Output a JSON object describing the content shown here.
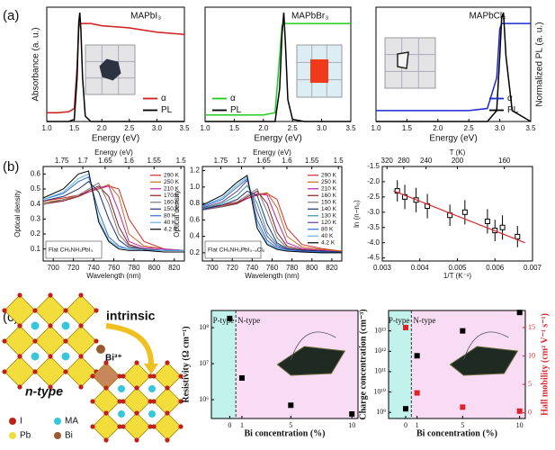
{
  "panel_labels": [
    "(a)",
    "(b)",
    "(c)"
  ],
  "diagram": {
    "intrinsic": "intrinsic",
    "dopant": "Bi³⁺",
    "ntype": "n-type",
    "legend": [
      "I",
      "MA",
      "Pb",
      "Bi"
    ]
  },
  "chart_data": [
    {
      "type": "line",
      "title": "MAPbI₃",
      "xlabel": "Energy (eV)",
      "ylabel": "Absorbance (a. u.)",
      "legend": "lower right",
      "xlim": [
        1,
        3.5
      ],
      "ylim": [
        0,
        1.05
      ],
      "xticks": [
        {
          "value": 1,
          "label": "1.0"
        },
        1.5,
        {
          "value": 2,
          "label": "2.0"
        },
        2.5,
        {
          "value": 3,
          "label": "3.0"
        },
        3.5
      ],
      "x": [
        1.0,
        1.2,
        1.4,
        1.5,
        1.55,
        1.58,
        1.6,
        1.62,
        1.65,
        1.7,
        1.8,
        2.0,
        2.5,
        3.0,
        3.5
      ],
      "series": [
        {
          "name": "α",
          "color": "#d01c1c",
          "values": [
            0.08,
            0.08,
            0.09,
            0.12,
            0.5,
            0.85,
            0.9,
            0.9,
            0.9,
            0.9,
            0.9,
            0.88,
            0.86,
            0.82,
            0.8
          ]
        },
        {
          "name": "PL",
          "color": "#000000",
          "values": [
            0,
            0,
            0,
            0.02,
            0.4,
            0.9,
            1.0,
            0.85,
            0.4,
            0.05,
            0,
            0,
            0,
            0,
            0
          ]
        }
      ]
    },
    {
      "type": "line",
      "title": "MAPbBr₃",
      "xlabel": "Energy (eV)",
      "legend": "lower left",
      "xlim": [
        1,
        3.5
      ],
      "ylim": [
        0,
        1.05
      ],
      "xticks": [
        {
          "value": 1,
          "label": "1.0"
        },
        1.5,
        {
          "value": 2,
          "label": "2.0"
        },
        2.5,
        {
          "value": 3,
          "label": "3.0"
        },
        3.5
      ],
      "x": [
        1.0,
        1.5,
        2.0,
        2.2,
        2.28,
        2.32,
        2.35,
        2.38,
        2.42,
        2.5,
        2.7,
        3.0,
        3.5
      ],
      "series": [
        {
          "name": "α",
          "color": "#22cc22",
          "values": [
            0.06,
            0.06,
            0.06,
            0.08,
            0.6,
            0.88,
            0.9,
            0.9,
            0.9,
            0.9,
            0.9,
            0.9,
            0.9
          ]
        },
        {
          "name": "PL",
          "color": "#000000",
          "values": [
            0,
            0,
            0,
            0,
            0.3,
            0.8,
            1.0,
            0.7,
            0.2,
            0.02,
            0,
            0,
            0
          ]
        }
      ]
    },
    {
      "type": "line",
      "title": "MAPbCl₃",
      "xlabel": "Energy (eV)",
      "ylabel": "Normalized PL (a. u.)",
      "ylabel_position": "right",
      "legend": "lower right",
      "xlim": [
        1,
        3.5
      ],
      "ylim": [
        0,
        1.05
      ],
      "xticks": [
        {
          "value": 1,
          "label": "1.0"
        },
        1.5,
        {
          "value": 2,
          "label": "2.0"
        },
        2.5,
        {
          "value": 3,
          "label": "3.0"
        },
        3.5
      ],
      "x": [
        1.0,
        1.5,
        2.0,
        2.5,
        2.8,
        2.95,
        3.0,
        3.03,
        3.06,
        3.1,
        3.2,
        3.5
      ],
      "series": [
        {
          "name": "α",
          "color": "#1a2bd0",
          "values": [
            0.1,
            0.1,
            0.1,
            0.1,
            0.12,
            0.4,
            0.85,
            0.9,
            0.9,
            0.9,
            0.9,
            0.9
          ]
        },
        {
          "name": "PL",
          "color": "#000000",
          "values": [
            0,
            0,
            0,
            0,
            0,
            0.1,
            0.6,
            0.95,
            1.0,
            0.6,
            0.1,
            0
          ]
        }
      ]
    },
    {
      "type": "line",
      "xlabel": "Wavelength (nm)",
      "ylabel": "Optical density",
      "x2label": "Energy (eV)",
      "legend": "upper right",
      "annotation": "Flat CH₃NH₃PbI₃",
      "xlim": [
        690,
        830
      ],
      "ylim": [
        0.02,
        0.65
      ],
      "xticks": [
        700,
        720,
        740,
        760,
        780,
        800,
        820
      ],
      "yticks": [
        0.1,
        0.2,
        0.3,
        0.4,
        0.5,
        0.6
      ],
      "x2ticks": [
        1.75,
        1.7,
        1.65,
        1.6,
        1.55,
        1.5
      ],
      "x": [
        690,
        710,
        725,
        735,
        745,
        755,
        765,
        775,
        790,
        810,
        830
      ],
      "series": [
        {
          "name": "290 K",
          "color": "#d62728",
          "values": [
            0.42,
            0.44,
            0.46,
            0.48,
            0.5,
            0.52,
            0.5,
            0.3,
            0.15,
            0.1,
            0.09
          ]
        },
        {
          "name": "250 K",
          "color": "#c46a1b",
          "values": [
            0.41,
            0.43,
            0.45,
            0.48,
            0.5,
            0.53,
            0.45,
            0.2,
            0.12,
            0.1,
            0.09
          ]
        },
        {
          "name": "210 K",
          "color": "#c020a0",
          "values": [
            0.4,
            0.42,
            0.45,
            0.48,
            0.51,
            0.52,
            0.35,
            0.15,
            0.11,
            0.1,
            0.09
          ]
        },
        {
          "name": "170 K",
          "color": "#8b1a1a",
          "values": [
            0.4,
            0.42,
            0.45,
            0.49,
            0.52,
            0.45,
            0.25,
            0.13,
            0.1,
            0.09,
            0.09
          ]
        },
        {
          "name": "160 K",
          "color": "#777777",
          "values": [
            0.4,
            0.43,
            0.46,
            0.5,
            0.54,
            0.4,
            0.2,
            0.12,
            0.1,
            0.09,
            0.09
          ]
        },
        {
          "name": "150 K",
          "color": "#1f2f7a",
          "values": [
            0.42,
            0.45,
            0.5,
            0.55,
            0.48,
            0.3,
            0.16,
            0.11,
            0.1,
            0.09,
            0.09
          ]
        },
        {
          "name": "80 K",
          "color": "#2a6fd6",
          "values": [
            0.43,
            0.47,
            0.55,
            0.58,
            0.35,
            0.18,
            0.12,
            0.1,
            0.09,
            0.09,
            0.09
          ]
        },
        {
          "name": "40 K",
          "color": "#5fb4e8",
          "values": [
            0.43,
            0.48,
            0.57,
            0.6,
            0.3,
            0.16,
            0.11,
            0.1,
            0.09,
            0.09,
            0.09
          ]
        },
        {
          "name": "4.2 K",
          "color": "#000000",
          "values": [
            0.44,
            0.5,
            0.6,
            0.62,
            0.28,
            0.15,
            0.1,
            0.09,
            0.09,
            0.08,
            0.08
          ]
        }
      ]
    },
    {
      "type": "line",
      "xlabel": "Wavelength (nm)",
      "ylabel": "Optical density",
      "x2label": "Energy (eV)",
      "legend": "upper right",
      "annotation": "Flat CH₃NH₃PbI₃₋ₓClₓ",
      "xlim": [
        690,
        830
      ],
      "ylim": [
        0.1,
        1.25
      ],
      "xticks": [
        700,
        720,
        740,
        760,
        780,
        800,
        820
      ],
      "yticks": [
        0.2,
        0.4,
        0.6,
        0.8,
        {
          "value": 1,
          "label": "1.0"
        },
        1.2
      ],
      "x2ticks": [
        1.75,
        1.7,
        1.65,
        1.6,
        1.55,
        1.5
      ],
      "x": [
        690,
        710,
        725,
        735,
        745,
        755,
        765,
        775,
        790,
        810,
        830
      ],
      "series": [
        {
          "name": "290 K",
          "color": "#d62728",
          "values": [
            0.75,
            0.78,
            0.82,
            0.86,
            0.9,
            0.92,
            0.85,
            0.5,
            0.3,
            0.25,
            0.22
          ]
        },
        {
          "name": "250 K",
          "color": "#c46a1b",
          "values": [
            0.74,
            0.77,
            0.81,
            0.86,
            0.91,
            0.93,
            0.75,
            0.4,
            0.27,
            0.24,
            0.22
          ]
        },
        {
          "name": "210 K",
          "color": "#c020a0",
          "values": [
            0.73,
            0.76,
            0.8,
            0.86,
            0.92,
            0.9,
            0.6,
            0.32,
            0.25,
            0.23,
            0.21
          ]
        },
        {
          "name": "160 K",
          "color": "#8b1a1a",
          "values": [
            0.72,
            0.76,
            0.8,
            0.88,
            0.95,
            0.8,
            0.45,
            0.28,
            0.24,
            0.22,
            0.21
          ]
        },
        {
          "name": "150 K",
          "color": "#777777",
          "values": [
            0.72,
            0.76,
            0.82,
            0.9,
            0.98,
            0.7,
            0.38,
            0.26,
            0.23,
            0.22,
            0.21
          ]
        },
        {
          "name": "140 K",
          "color": "#1f2f7a",
          "values": [
            0.73,
            0.78,
            0.85,
            0.95,
            0.9,
            0.55,
            0.32,
            0.25,
            0.23,
            0.22,
            0.21
          ]
        },
        {
          "name": "130 K",
          "color": "#2a9a9a",
          "values": [
            0.74,
            0.8,
            0.9,
            1.02,
            0.8,
            0.45,
            0.3,
            0.24,
            0.22,
            0.21,
            0.2
          ]
        },
        {
          "name": "120 K",
          "color": "#6a3d9a",
          "values": [
            0.75,
            0.82,
            0.95,
            1.08,
            0.7,
            0.4,
            0.28,
            0.24,
            0.22,
            0.21,
            0.2
          ]
        },
        {
          "name": "80 K",
          "color": "#2a6fd6",
          "values": [
            0.76,
            0.85,
            1.0,
            1.1,
            0.6,
            0.35,
            0.26,
            0.23,
            0.22,
            0.21,
            0.2
          ]
        },
        {
          "name": "40 K",
          "color": "#5fb4e8",
          "values": [
            0.77,
            0.87,
            1.03,
            1.12,
            0.55,
            0.32,
            0.25,
            0.23,
            0.21,
            0.2,
            0.2
          ]
        },
        {
          "name": "4.2 K",
          "color": "#000000",
          "values": [
            0.78,
            0.9,
            1.06,
            1.14,
            0.5,
            0.3,
            0.24,
            0.22,
            0.21,
            0.2,
            0.2
          ]
        }
      ]
    },
    {
      "type": "scatter",
      "xlabel": "1/T (K⁻¹)",
      "ylabel": "ln (n−n₀)",
      "x2label": "T (K)",
      "grid": false,
      "xlim": [
        0.003,
        0.007
      ],
      "ylim": [
        -4.6,
        -1.5
      ],
      "xticks": [
        0.003,
        0.004,
        0.005,
        0.006,
        0.007
      ],
      "yticks": [
        -4.5,
        {
          "value": -4,
          "label": "-4.0"
        },
        -3.5,
        {
          "value": -3,
          "label": "-3.0"
        },
        -2.5,
        {
          "value": -2,
          "label": "-2.0"
        },
        -1.5
      ],
      "x2ticks": [
        320,
        280,
        240,
        200,
        160
      ],
      "x": [
        0.0034,
        0.0036,
        0.0039,
        0.0042,
        0.0048,
        0.0052,
        0.0058,
        0.006,
        0.0062,
        0.0066
      ],
      "series": [
        {
          "color": "#000000",
          "marker": "open",
          "values": [
            -2.3,
            -2.5,
            -2.6,
            -2.8,
            -3.1,
            -3.0,
            -3.3,
            -3.6,
            -3.5,
            -3.8
          ],
          "errors": [
            0.35,
            0.4,
            0.4,
            0.4,
            0.35,
            0.4,
            0.4,
            0.35,
            0.4,
            0.35
          ]
        }
      ],
      "fit": {
        "x": [
          0.0033,
          0.0068
        ],
        "values": [
          -2.3,
          -4.0
        ],
        "color": "#d62728"
      }
    },
    {
      "type": "scatter",
      "xlabel": "Bi concentration (%)",
      "ylabel": "Resistivity (Ω cm⁻¹)",
      "ylog": true,
      "xlim": [
        -1.5,
        10.5
      ],
      "ylim": [
        300000,
        300000000
      ],
      "xticks": [
        0,
        1,
        5,
        10
      ],
      "yticks": [
        {
          "value": 1000000,
          "label": "10⁶"
        },
        {
          "value": 10000000,
          "label": "10⁷"
        },
        {
          "value": 100000000,
          "label": "10⁸"
        }
      ],
      "regions": [
        {
          "name": "P-type",
          "color": "#c2f2ec"
        },
        {
          "name": "N-type",
          "color": "#f8dcf4"
        }
      ],
      "divider": 0.5,
      "x": [
        0,
        1,
        5,
        10
      ],
      "series": [
        {
          "color": "#000000",
          "marker": "filled",
          "values": [
            180000000,
            4000000,
            700000,
            400000
          ]
        }
      ]
    },
    {
      "type": "scatter",
      "xlabel": "Bi concentration (%)",
      "ylabel": "Charge concentration (cm⁻³)",
      "y2label": "Hall mobility (cm² V⁻¹ s⁻¹)",
      "ylog": true,
      "xlim": [
        -1.5,
        10.5
      ],
      "ylim": [
        500000000,
        100000000000000
      ],
      "y2lim": [
        -1,
        18
      ],
      "xticks": [
        0,
        1,
        5,
        10
      ],
      "yticks": [
        {
          "value": 1000000000,
          "label": "10⁹"
        },
        {
          "value": 10000000000,
          "label": "10¹⁰"
        },
        {
          "value": 100000000000,
          "label": "10¹¹"
        },
        {
          "value": 1000000000000,
          "label": "10¹²"
        },
        {
          "value": 10000000000000,
          "label": "10¹³"
        }
      ],
      "y2ticks": [
        0,
        5,
        10,
        15
      ],
      "y2color": "#e0202a",
      "regions": [
        {
          "name": "P-type",
          "color": "#c2f2ec"
        },
        {
          "name": "N-type",
          "color": "#f8dcf4"
        }
      ],
      "divider": 0.5,
      "x": [
        0,
        1,
        5,
        10
      ],
      "series": [
        {
          "color": "#000000",
          "marker": "filled",
          "values": [
            1500000000,
            600000000000,
            10000000000000,
            80000000000000
          ]
        },
        {
          "color": "#e0202a",
          "marker": "filled",
          "axis": "y2",
          "values": [
            15,
            3.5,
            1,
            0.3
          ]
        }
      ]
    }
  ]
}
